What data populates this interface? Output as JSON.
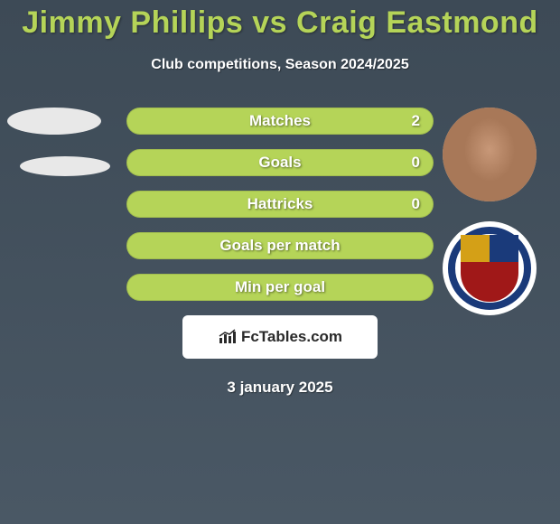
{
  "title": "Jimmy Phillips vs Craig Eastmond",
  "subtitle": "Club competitions, Season 2024/2025",
  "date": "3 january 2025",
  "brand": "FcTables.com",
  "colors": {
    "accent": "#b5d458",
    "bg_top": "#3d4a56",
    "bg_bottom": "#4a5865",
    "text_light": "#ffffff"
  },
  "stats": [
    {
      "label": "Matches",
      "value": "2",
      "show_value": true
    },
    {
      "label": "Goals",
      "value": "0",
      "show_value": true
    },
    {
      "label": "Hattricks",
      "value": "0",
      "show_value": true
    },
    {
      "label": "Goals per match",
      "value": "",
      "show_value": false
    },
    {
      "label": "Min per goal",
      "value": "",
      "show_value": false
    }
  ],
  "left_player": {
    "name": "Jimmy Phillips"
  },
  "right_player": {
    "name": "Craig Eastmond"
  }
}
